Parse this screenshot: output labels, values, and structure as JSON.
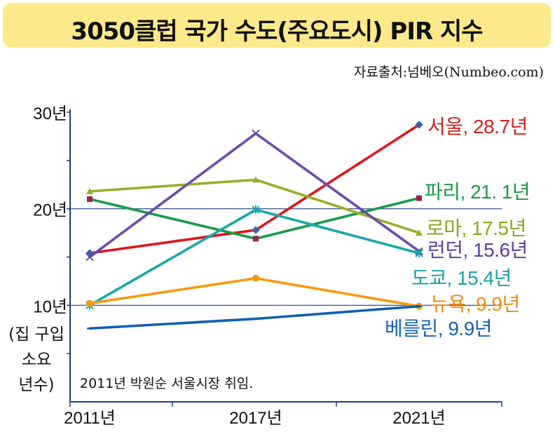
{
  "title": "3050클럽 국가 수도(주요도시) PIR 지수",
  "source": "자료출처:넘베오(Numbeo.com)",
  "note": "2011년 박원순 서울시장 취임.",
  "chart_data": {
    "type": "line",
    "x": [
      "2011년",
      "2017년",
      "2021년"
    ],
    "ylim": [
      0,
      30
    ],
    "yticks": [
      "10년",
      "20년",
      "30년"
    ],
    "ylabel": [
      "(집 구입",
      "소요",
      "년수)"
    ],
    "grid": "horizontal at 10 and 20",
    "series": [
      {
        "name": "서울",
        "label": "서울, 28.7년",
        "values": [
          15.4,
          17.8,
          28.7
        ],
        "color": "#e0141c",
        "marker": "diamond",
        "label_color": "#d42020"
      },
      {
        "name": "파리",
        "label": "파리, 21. 1년",
        "values": [
          21.0,
          16.9,
          21.1
        ],
        "color": "#1a9a48",
        "marker": "square",
        "label_color": "#1a9a48"
      },
      {
        "name": "로마",
        "label": "로마, 17.5년",
        "values": [
          21.8,
          23.0,
          17.5
        ],
        "color": "#9aad2a",
        "marker": "triangle",
        "label_color": "#8ea21e"
      },
      {
        "name": "런던",
        "label": "런던, 15.6년",
        "values": [
          15.0,
          27.8,
          15.6
        ],
        "color": "#6a4ca8",
        "marker": "x",
        "label_color": "#5b3f9c"
      },
      {
        "name": "도쿄",
        "label": "도쿄, 15.4년",
        "values": [
          10.0,
          19.9,
          15.4
        ],
        "color": "#1aa7a8",
        "marker": "star",
        "label_color": "#1aa0a8"
      },
      {
        "name": "뉴욕",
        "label": "뉴욕, 9.9년",
        "values": [
          10.2,
          12.8,
          9.9
        ],
        "color": "#f39a12",
        "marker": "circle",
        "label_color": "#f08a10"
      },
      {
        "name": "베를린",
        "label": "베를린, 9.9년",
        "values": [
          7.6,
          8.6,
          9.9
        ],
        "color": "#0f5fb0",
        "marker": "dash",
        "label_color": "#1660b8"
      }
    ]
  }
}
